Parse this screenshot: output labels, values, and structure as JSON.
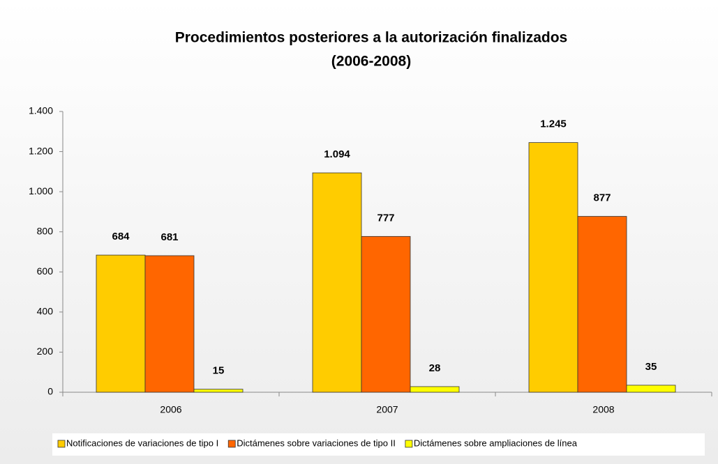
{
  "chart_data": {
    "type": "bar",
    "title": [
      "Procedimientos posteriores a la autorización finalizados",
      "(2006-2008)"
    ],
    "categories": [
      "2006",
      "2007",
      "2008"
    ],
    "series": [
      {
        "name": "Notificaciones de variaciones de tipo I",
        "color": "#ffcc00",
        "values": [
          684,
          1094,
          1245
        ],
        "value_labels": [
          "684",
          "1.094",
          "1.245"
        ]
      },
      {
        "name": "Dictámenes sobre variaciones de tipo II",
        "color": "#ff6600",
        "values": [
          681,
          777,
          877
        ]
      },
      {
        "name": "Dictámenes sobre ampliaciones de línea",
        "color": "#ffff00",
        "values": [
          15,
          28,
          35
        ]
      }
    ],
    "ylim": [
      0,
      1400
    ],
    "yticks": [
      0,
      200,
      400,
      600,
      800,
      {
        "value": 1000,
        "label": "1.000"
      },
      {
        "value": 1200,
        "label": "1.200"
      },
      {
        "value": 1400,
        "label": "1.400"
      }
    ],
    "legend": "bottom"
  }
}
